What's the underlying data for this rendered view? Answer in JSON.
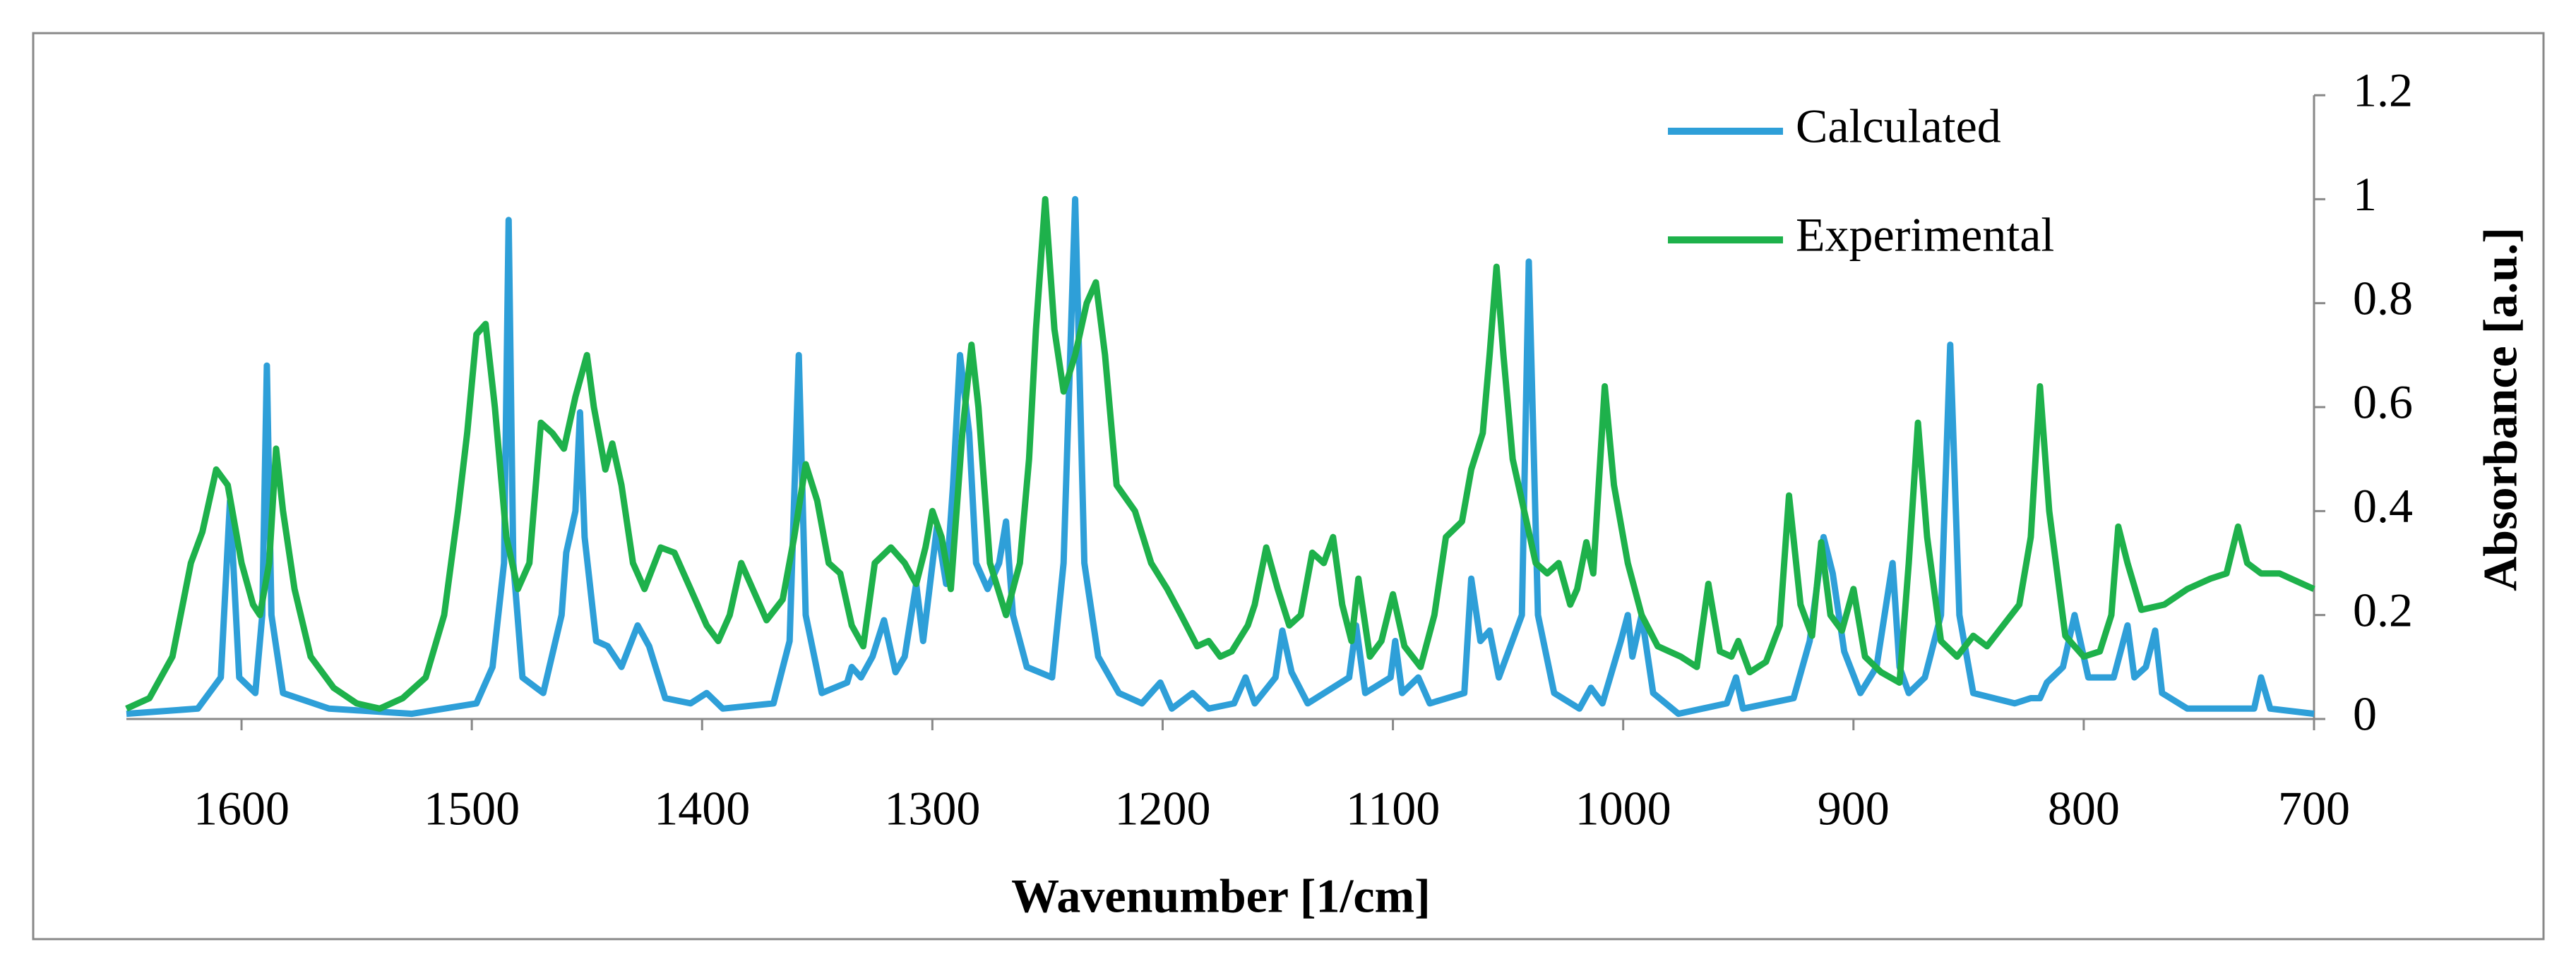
{
  "chart_data": {
    "type": "line",
    "xlabel": "Wavenumber [1/cm]",
    "ylabel": "Absorbance [a.u.]",
    "xlim": [
      1650,
      700
    ],
    "xticks": [
      1600,
      1500,
      1400,
      1300,
      1200,
      1100,
      1000,
      900,
      800,
      700
    ],
    "ylim": [
      0,
      1.2
    ],
    "yticks": [
      0,
      0.2,
      0.4,
      0.6,
      0.8,
      1,
      1.2
    ],
    "y_axis_side": "right",
    "legend": "upper right",
    "series": [
      {
        "name": "Calculated",
        "color": "#2e9fd8",
        "x": [
          1650,
          1619,
          1609,
          1605,
          1601,
          1594,
          1591,
          1589,
          1587,
          1582,
          1562,
          1526,
          1498,
          1491,
          1486,
          1484,
          1482,
          1478,
          1469,
          1461,
          1459,
          1455,
          1453,
          1451,
          1446,
          1441,
          1435,
          1428,
          1423,
          1416,
          1405,
          1398,
          1391,
          1369,
          1362,
          1358,
          1355,
          1348,
          1337,
          1335,
          1331,
          1326,
          1321,
          1316,
          1312,
          1307,
          1304,
          1298,
          1294,
          1291,
          1288,
          1284,
          1281,
          1276,
          1271,
          1268,
          1265,
          1259,
          1248,
          1243,
          1238,
          1234,
          1228,
          1219,
          1209,
          1201,
          1196,
          1187,
          1180,
          1169,
          1164,
          1160,
          1151,
          1148,
          1144,
          1137,
          1119,
          1116,
          1112,
          1101,
          1099,
          1096,
          1089,
          1084,
          1069,
          1066,
          1062,
          1058,
          1054,
          1044,
          1041,
          1037,
          1030,
          1019,
          1014,
          1009,
          1001,
          998,
          996,
          992,
          987,
          976,
          955,
          951,
          948,
          926,
          919,
          913,
          909,
          904,
          897,
          890,
          883,
          880,
          876,
          869,
          862,
          858,
          854,
          848,
          830,
          823,
          819,
          816,
          809,
          804,
          798,
          787,
          781,
          778,
          773,
          769,
          766,
          755,
          726,
          723,
          719,
          700
        ],
        "values": [
          0.01,
          0.02,
          0.08,
          0.42,
          0.08,
          0.05,
          0.2,
          0.68,
          0.2,
          0.05,
          0.02,
          0.01,
          0.03,
          0.1,
          0.3,
          0.96,
          0.3,
          0.08,
          0.05,
          0.2,
          0.32,
          0.4,
          0.59,
          0.35,
          0.15,
          0.14,
          0.1,
          0.18,
          0.14,
          0.04,
          0.03,
          0.05,
          0.02,
          0.03,
          0.15,
          0.7,
          0.2,
          0.05,
          0.07,
          0.1,
          0.08,
          0.12,
          0.19,
          0.09,
          0.12,
          0.26,
          0.15,
          0.37,
          0.26,
          0.45,
          0.7,
          0.55,
          0.3,
          0.25,
          0.3,
          0.38,
          0.2,
          0.1,
          0.08,
          0.3,
          1.0,
          0.3,
          0.12,
          0.05,
          0.03,
          0.07,
          0.02,
          0.05,
          0.02,
          0.03,
          0.08,
          0.03,
          0.08,
          0.17,
          0.09,
          0.03,
          0.08,
          0.18,
          0.05,
          0.08,
          0.15,
          0.05,
          0.08,
          0.03,
          0.05,
          0.27,
          0.15,
          0.17,
          0.08,
          0.2,
          0.88,
          0.2,
          0.05,
          0.02,
          0.06,
          0.03,
          0.15,
          0.2,
          0.12,
          0.2,
          0.05,
          0.01,
          0.03,
          0.08,
          0.02,
          0.04,
          0.15,
          0.35,
          0.28,
          0.13,
          0.05,
          0.1,
          0.3,
          0.1,
          0.05,
          0.08,
          0.2,
          0.72,
          0.2,
          0.05,
          0.03,
          0.04,
          0.04,
          0.07,
          0.1,
          0.2,
          0.08,
          0.08,
          0.18,
          0.08,
          0.1,
          0.17,
          0.05,
          0.02,
          0.02,
          0.08,
          0.02,
          0.01
        ]
      },
      {
        "name": "Experimental",
        "color": "#1eb14b",
        "x": [
          1650,
          1640,
          1630,
          1622,
          1617,
          1611,
          1606,
          1600,
          1595,
          1592,
          1588,
          1585,
          1582,
          1577,
          1570,
          1560,
          1550,
          1540,
          1530,
          1520,
          1512,
          1506,
          1502,
          1498,
          1494,
          1490,
          1485,
          1480,
          1475,
          1470,
          1465,
          1460,
          1455,
          1450,
          1447,
          1442,
          1439,
          1435,
          1430,
          1425,
          1418,
          1412,
          1405,
          1398,
          1393,
          1388,
          1383,
          1378,
          1372,
          1365,
          1360,
          1355,
          1350,
          1345,
          1340,
          1335,
          1330,
          1325,
          1318,
          1312,
          1307,
          1303,
          1300,
          1296,
          1292,
          1287,
          1283,
          1280,
          1275,
          1268,
          1262,
          1258,
          1255,
          1251,
          1247,
          1243,
          1238,
          1233,
          1229,
          1225,
          1220,
          1212,
          1205,
          1198,
          1192,
          1185,
          1180,
          1175,
          1170,
          1163,
          1160,
          1155,
          1150,
          1145,
          1140,
          1135,
          1130,
          1126,
          1122,
          1118,
          1115,
          1110,
          1105,
          1100,
          1095,
          1088,
          1082,
          1077,
          1070,
          1066,
          1061,
          1058,
          1055,
          1052,
          1048,
          1043,
          1038,
          1033,
          1028,
          1023,
          1020,
          1016,
          1013,
          1008,
          1004,
          998,
          992,
          985,
          975,
          968,
          963,
          958,
          953,
          950,
          945,
          938,
          932,
          928,
          923,
          918,
          914,
          910,
          905,
          900,
          895,
          888,
          880,
          876,
          872,
          868,
          862,
          855,
          848,
          842,
          835,
          828,
          823,
          819,
          815,
          808,
          800,
          793,
          788,
          785,
          781,
          775,
          765,
          755,
          745,
          738,
          733,
          729,
          723,
          715,
          710,
          705,
          700
        ],
        "values": [
          0.02,
          0.04,
          0.12,
          0.3,
          0.36,
          0.48,
          0.45,
          0.3,
          0.22,
          0.2,
          0.3,
          0.52,
          0.4,
          0.25,
          0.12,
          0.06,
          0.03,
          0.02,
          0.04,
          0.08,
          0.2,
          0.4,
          0.55,
          0.74,
          0.76,
          0.6,
          0.35,
          0.25,
          0.3,
          0.57,
          0.55,
          0.52,
          0.62,
          0.7,
          0.6,
          0.48,
          0.53,
          0.45,
          0.3,
          0.25,
          0.33,
          0.32,
          0.25,
          0.18,
          0.15,
          0.2,
          0.3,
          0.25,
          0.19,
          0.23,
          0.35,
          0.49,
          0.42,
          0.3,
          0.28,
          0.18,
          0.14,
          0.3,
          0.33,
          0.3,
          0.26,
          0.33,
          0.4,
          0.35,
          0.25,
          0.55,
          0.72,
          0.6,
          0.3,
          0.2,
          0.3,
          0.5,
          0.75,
          1.0,
          0.75,
          0.63,
          0.7,
          0.8,
          0.84,
          0.7,
          0.45,
          0.4,
          0.3,
          0.25,
          0.2,
          0.14,
          0.15,
          0.12,
          0.13,
          0.18,
          0.22,
          0.33,
          0.25,
          0.18,
          0.2,
          0.32,
          0.3,
          0.35,
          0.22,
          0.15,
          0.27,
          0.12,
          0.15,
          0.24,
          0.14,
          0.1,
          0.2,
          0.35,
          0.38,
          0.48,
          0.55,
          0.7,
          0.87,
          0.7,
          0.5,
          0.4,
          0.3,
          0.28,
          0.3,
          0.22,
          0.25,
          0.34,
          0.28,
          0.64,
          0.45,
          0.3,
          0.2,
          0.14,
          0.12,
          0.1,
          0.26,
          0.13,
          0.12,
          0.15,
          0.09,
          0.11,
          0.18,
          0.43,
          0.22,
          0.16,
          0.34,
          0.2,
          0.17,
          0.25,
          0.12,
          0.09,
          0.07,
          0.3,
          0.57,
          0.35,
          0.15,
          0.12,
          0.16,
          0.14,
          0.18,
          0.22,
          0.35,
          0.64,
          0.4,
          0.16,
          0.12,
          0.13,
          0.2,
          0.37,
          0.3,
          0.21,
          0.22,
          0.25,
          0.27,
          0.28,
          0.37,
          0.3,
          0.28,
          0.28,
          0.27,
          0.26,
          0.25
        ]
      }
    ]
  }
}
